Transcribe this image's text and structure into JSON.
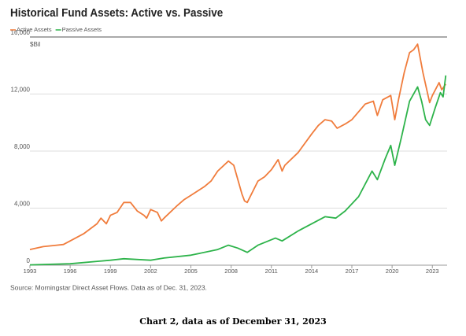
{
  "chart_data": {
    "type": "line",
    "title": "Historical Fund Assets: Active vs. Passive",
    "y_unit": "$Bil",
    "source": "Source: Morningstar Direct Asset Flows. Data as of Dec. 31, 2023.",
    "caption": "Chart 2, data as of December 31, 2023",
    "xlim": [
      1993,
      2024.1
    ],
    "xticks": [
      1993,
      1996,
      1999,
      2002,
      2005,
      2008,
      2011,
      2014,
      2017,
      2020,
      2023
    ],
    "ylim": [
      0,
      16000
    ],
    "yticks": [
      0,
      {
        "value": 4000,
        "label": "4,000"
      },
      {
        "value": 8000,
        "label": "8,000"
      },
      {
        "value": 12000,
        "label": "12,000"
      },
      {
        "value": 16000,
        "label": "16,000"
      }
    ],
    "grid": true,
    "series": [
      {
        "name": "Active Assets",
        "color": "#f07c3c",
        "x": [
          1993,
          1994,
          1995,
          1995.5,
          1996,
          1997,
          1998,
          1998.3,
          1998.7,
          1999,
          1999.5,
          2000,
          2000.5,
          2001,
          2001.5,
          2001.7,
          2002,
          2002.5,
          2002.8,
          2003,
          2004,
          2004.5,
          2005,
          2006,
          2006.5,
          2007,
          2007.8,
          2008.2,
          2008.8,
          2009,
          2009.2,
          2010,
          2010.5,
          2011,
          2011.5,
          2011.8,
          2012,
          2013,
          2014,
          2014.5,
          2015,
          2015.5,
          2015.9,
          2016.5,
          2017,
          2018,
          2018.6,
          2018.9,
          2019.3,
          2019.9,
          2020.2,
          2020.5,
          2020.9,
          2021.3,
          2021.6,
          2021.9,
          2022.3,
          2022.8,
          2023,
          2023.5,
          2023.7,
          2024
        ],
        "values": [
          1100,
          1300,
          1400,
          1450,
          1700,
          2200,
          2900,
          3300,
          2900,
          3500,
          3700,
          4400,
          4400,
          3800,
          3500,
          3300,
          3900,
          3700,
          3100,
          3300,
          4200,
          4600,
          4900,
          5500,
          5900,
          6600,
          7300,
          7000,
          5000,
          4500,
          4400,
          5900,
          6200,
          6700,
          7400,
          6600,
          7000,
          7900,
          9200,
          9800,
          10200,
          10100,
          9600,
          9900,
          10200,
          11300,
          11500,
          10500,
          11600,
          11900,
          10200,
          11700,
          13500,
          14900,
          15100,
          15500,
          13500,
          11400,
          11900,
          12800,
          12300,
          12700
        ]
      },
      {
        "name": "Passive Assets",
        "color": "#2db34a",
        "x": [
          1993,
          1996,
          1999,
          2000,
          2002,
          2003,
          2005,
          2007,
          2007.8,
          2008.5,
          2009.2,
          2010,
          2011.3,
          2011.8,
          2013,
          2014,
          2015,
          2015.8,
          2016.5,
          2017.5,
          2018.5,
          2018.9,
          2019.5,
          2019.9,
          2020.2,
          2020.7,
          2021.3,
          2021.9,
          2022.2,
          2022.5,
          2022.8,
          2023.2,
          2023.6,
          2023.8,
          2024
        ],
        "values": [
          20,
          100,
          350,
          450,
          350,
          500,
          700,
          1100,
          1400,
          1200,
          900,
          1400,
          1900,
          1700,
          2400,
          2900,
          3400,
          3300,
          3800,
          4800,
          6600,
          6000,
          7500,
          8400,
          7000,
          9000,
          11500,
          12500,
          11500,
          10200,
          9800,
          11000,
          12100,
          11800,
          13300
        ]
      }
    ]
  }
}
